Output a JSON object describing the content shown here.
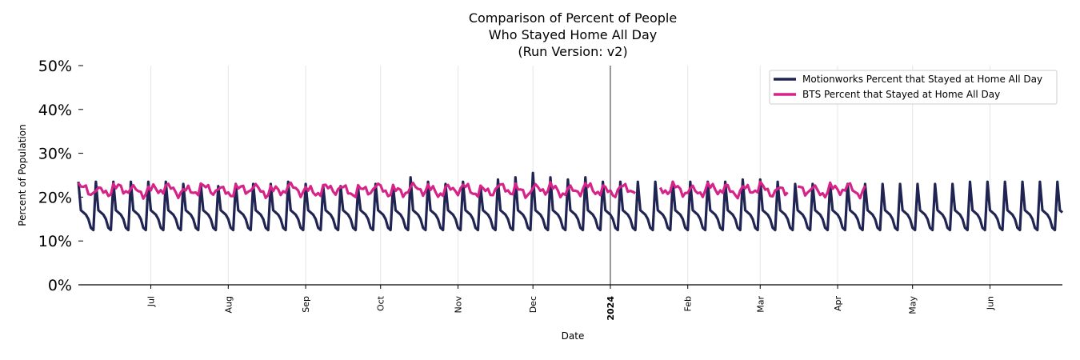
{
  "chart_data": {
    "type": "line",
    "title_lines": [
      "Comparison of Percent of People",
      "Who Stayed Home All Day",
      "(Run Version: v2)"
    ],
    "xlabel": "Date",
    "ylabel": "Percent of Population",
    "ylim": [
      0,
      50
    ],
    "yticks": [
      {
        "value": 0,
        "label": "0%"
      },
      {
        "value": 10,
        "label": "10%"
      },
      {
        "value": 20,
        "label": "20%"
      },
      {
        "value": 30,
        "label": "30%"
      },
      {
        "value": 40,
        "label": "40%"
      },
      {
        "value": 50,
        "label": "50%"
      }
    ],
    "x_range": [
      "2023-06-02",
      "2024-06-30"
    ],
    "x_ticks": [
      {
        "date": "2023-07-01",
        "label": "Jul",
        "bold": false
      },
      {
        "date": "2023-08-01",
        "label": "Aug",
        "bold": false
      },
      {
        "date": "2023-09-01",
        "label": "Sep",
        "bold": false
      },
      {
        "date": "2023-10-01",
        "label": "Oct",
        "bold": false
      },
      {
        "date": "2023-11-01",
        "label": "Nov",
        "bold": false
      },
      {
        "date": "2023-12-01",
        "label": "Dec",
        "bold": false
      },
      {
        "date": "2024-01-01",
        "label": "2024",
        "bold": true
      },
      {
        "date": "2024-02-01",
        "label": "Feb",
        "bold": false
      },
      {
        "date": "2024-03-01",
        "label": "Mar",
        "bold": false
      },
      {
        "date": "2024-04-01",
        "label": "Apr",
        "bold": false
      },
      {
        "date": "2024-05-01",
        "label": "May",
        "bold": false
      },
      {
        "date": "2024-06-01",
        "label": "Jun",
        "bold": false
      }
    ],
    "vline_date": "2024-01-01",
    "grid": "vertical",
    "legend_position": "top-right",
    "series": [
      {
        "name": "Motionworks Percent that Stayed at Home All Day",
        "color": "#1f2452",
        "start": "2023-06-02",
        "end": "2024-06-30",
        "weekly_pattern": [
          23.5,
          17.0,
          16.5,
          16.0,
          15.0,
          13.0,
          12.5
        ],
        "approx_peak_values": [
          23.5,
          23.5,
          23.5,
          23.5,
          23.5,
          23.5,
          23.0,
          23.0,
          22.5,
          23.0,
          23.0,
          23.0,
          23.5,
          23.0,
          22.5,
          22.5,
          22.0,
          23.0,
          22.5,
          24.5,
          23.5,
          23.0,
          23.5,
          22.5,
          24.0,
          24.5,
          25.5,
          24.5,
          24.0,
          24.5,
          23.5,
          23.5,
          23.5,
          23.5,
          23.5,
          23.5,
          23.5,
          23.5,
          24.0,
          24.0,
          23.5,
          23.0,
          23.0,
          23.0,
          23.0,
          23.0,
          23.0,
          23.0,
          23.0,
          23.0,
          23.0,
          23.5,
          23.5,
          23.5,
          23.5,
          23.5,
          23.5
        ]
      },
      {
        "name": "BTS Percent that Stayed at Home All Day",
        "color": "#d6238a",
        "start": "2023-06-02",
        "end": "2024-04-12",
        "gaps": [
          [
            "2024-01-12",
            "2024-01-20"
          ],
          [
            "2024-03-13",
            "2024-03-15"
          ]
        ],
        "approx_mean": 21.5,
        "approx_range": [
          19.0,
          23.5
        ]
      }
    ]
  }
}
